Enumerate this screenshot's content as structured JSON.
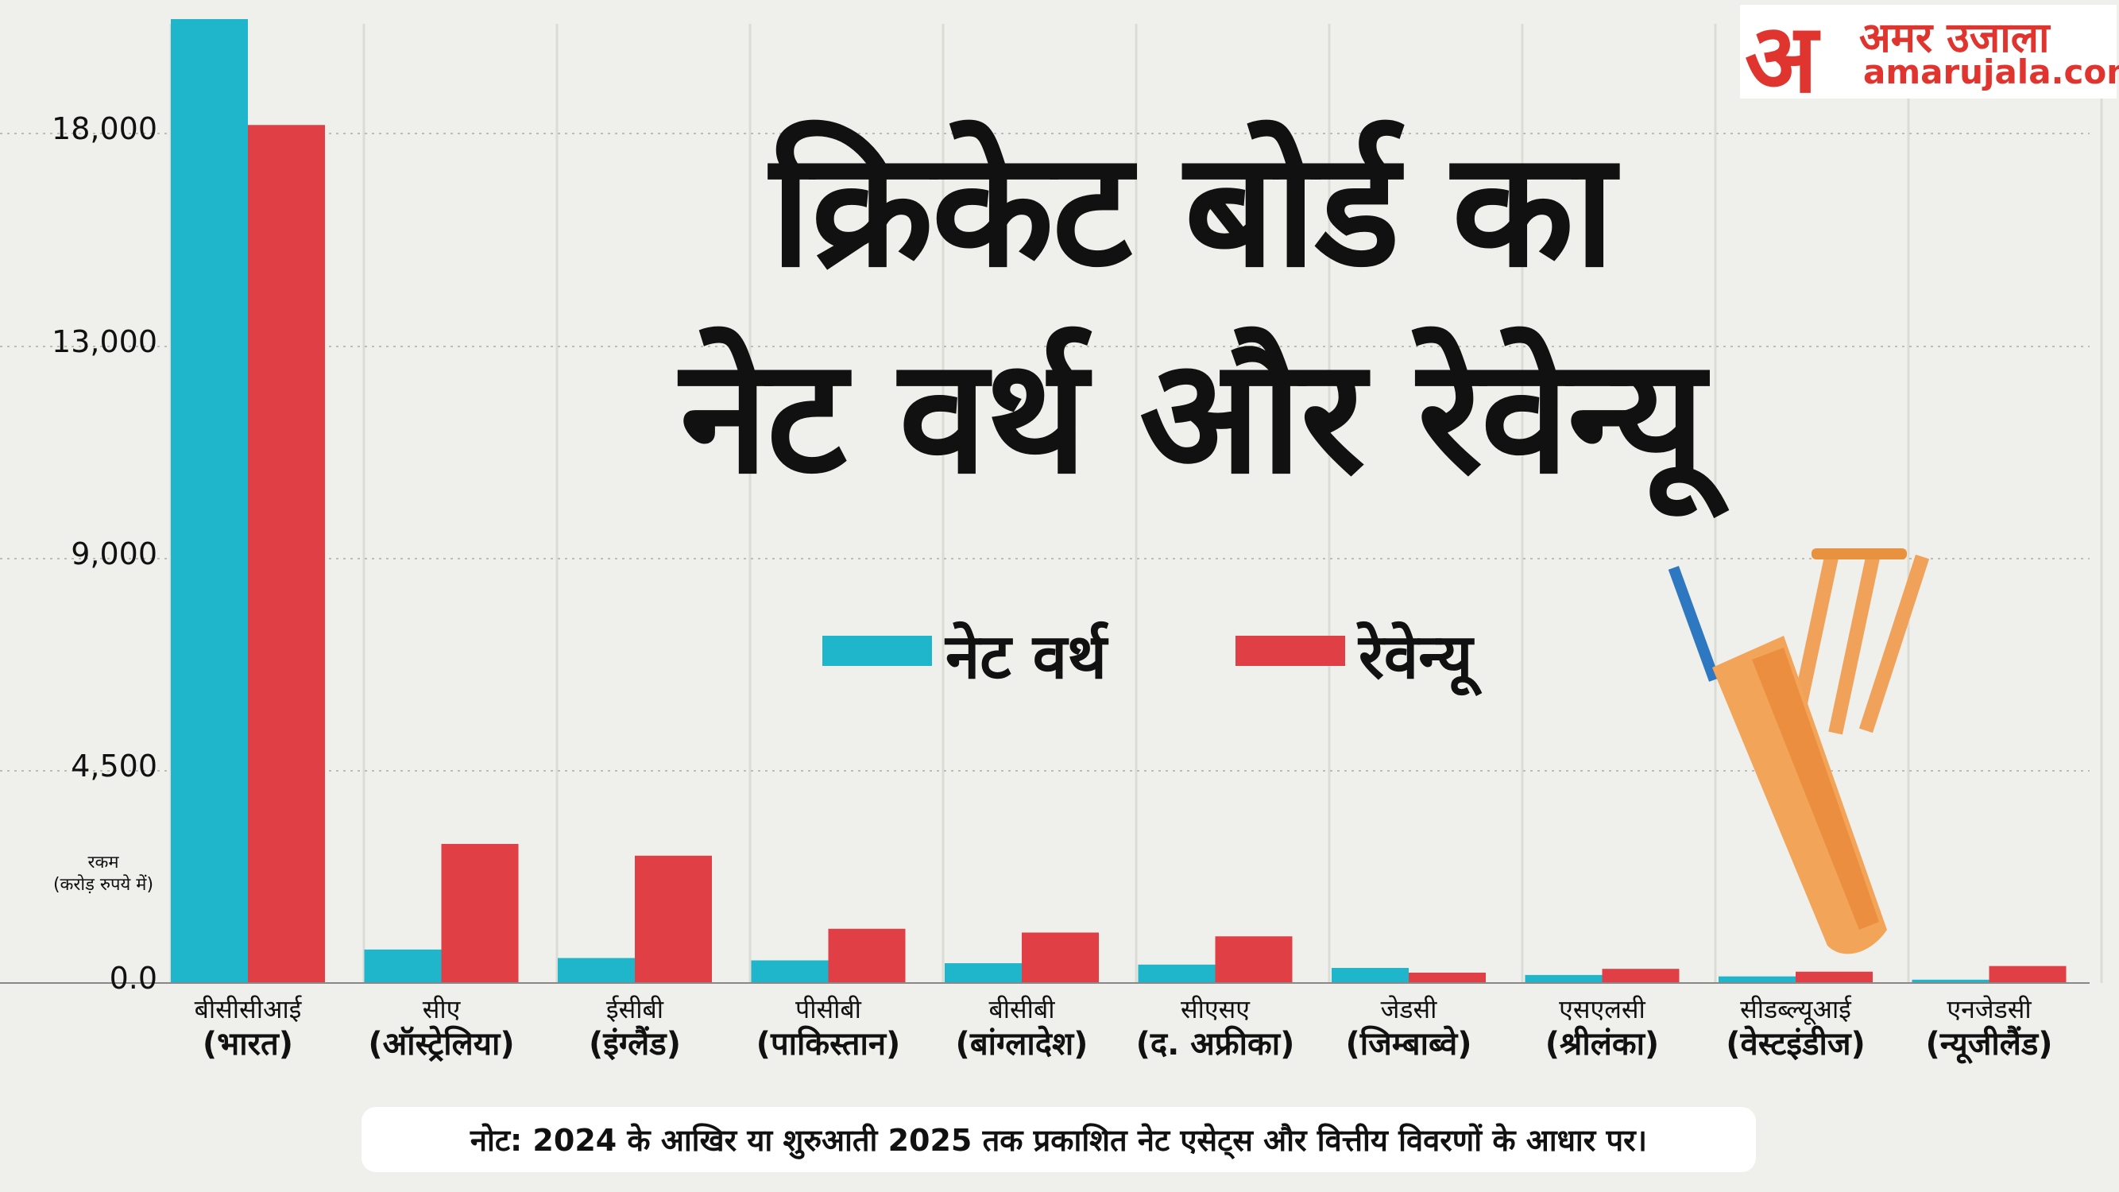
{
  "brand": {
    "hi": "अमर उजाला",
    "en": "amarujala.com",
    "glyph": "अ"
  },
  "title_lines": [
    "क्रिकेट बोर्ड का",
    "नेट वर्थ और रेवेन्यू"
  ],
  "legend": [
    {
      "label": "नेट वर्थ",
      "color": "#1fb6cb"
    },
    {
      "label": "रेवेन्यू",
      "color": "#e04045"
    }
  ],
  "y_axis": {
    "label_line1": "रकम",
    "label_line2": "(करोड़ रुपये में)"
  },
  "note": "नोट: 2024 के आखिर या शुरुआती 2025 तक प्रकाशित नेट एसेट्स और वित्तीय विवरणों के आधार पर।",
  "chart_data": {
    "type": "bar",
    "title": "क्रिकेट बोर्ड का नेट वर्थ और रेवेन्यू",
    "ylabel": "रकम (करोड़ रुपये में)",
    "categories": [
      {
        "line1": "बीसीसीआई",
        "line2": "(भारत)"
      },
      {
        "line1": "सीए",
        "line2": "(ऑस्ट्रेलिया)"
      },
      {
        "line1": "ईसीबी",
        "line2": "(इंग्लैंड)"
      },
      {
        "line1": "पीसीबी",
        "line2": "(पाकिस्तान)"
      },
      {
        "line1": "बीसीबी",
        "line2": "(बांग्लादेश)"
      },
      {
        "line1": "सीएसए",
        "line2": "(द. अफ्रीका)"
      },
      {
        "line1": "जेडसी",
        "line2": "(जिम्बाब्वे)"
      },
      {
        "line1": "एसएलसी",
        "line2": "(श्रीलंका)"
      },
      {
        "line1": "सीडब्ल्यूआई",
        "line2": "(वेस्टइंडीज)"
      },
      {
        "line1": "एनजेडसी",
        "line2": "(न्यूजीलैंड)"
      }
    ],
    "series": [
      {
        "name": "नेट वर्थ",
        "values": [
          20686,
          710,
          530,
          480,
          420,
          390,
          320,
          170,
          140,
          70
        ]
      },
      {
        "name": "रेवेन्यू",
        "values": [
          18200,
          2950,
          2700,
          1150,
          1070,
          990,
          220,
          300,
          240,
          360
        ]
      }
    ],
    "yticks": [
      {
        "label": "0.0"
      },
      {
        "label": "4,500"
      },
      {
        "label": "9,000"
      },
      {
        "label": "13,000"
      },
      {
        "label": "18,000"
      }
    ],
    "grid": true,
    "legend_position": "top-center"
  }
}
